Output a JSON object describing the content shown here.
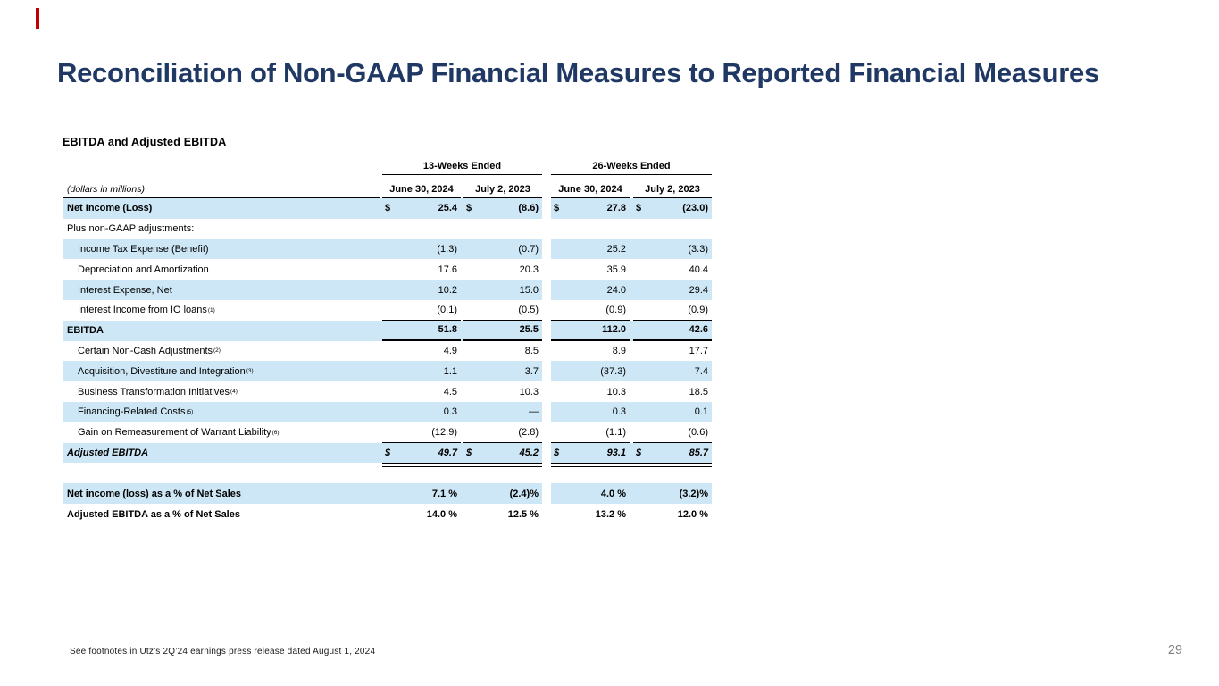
{
  "page": {
    "title": "Reconciliation of Non-GAAP Financial Measures to Reported Financial Measures",
    "footnote": "See footnotes in Utz’s 2Q’24 earnings press release dated August 1, 2024",
    "page_number": "29"
  },
  "colors": {
    "title_navy": "#1F3864",
    "stripe_blue": "#CDE7F6",
    "accent_red": "#C00000",
    "page_number_gray": "#7F7F7F"
  },
  "table": {
    "subtitle": "EBITDA and Adjusted EBITDA",
    "units_label": "(dollars in millions)",
    "column_groups": [
      "13-Weeks Ended",
      "26-Weeks Ended"
    ],
    "columns": [
      "June 30, 2024",
      "July 2, 2023",
      "June 30, 2024",
      "July 2, 2023"
    ],
    "rows": [
      {
        "label": "Net Income (Loss)",
        "style": "bold",
        "stripe": true,
        "dollar": true,
        "values": [
          "25.4",
          "(8.6)",
          "27.8",
          "(23.0)"
        ]
      },
      {
        "label": "Plus non-GAAP adjustments:",
        "values": [
          "",
          "",
          "",
          ""
        ]
      },
      {
        "label": "Income Tax Expense (Benefit)",
        "indent": true,
        "stripe": true,
        "values": [
          "(1.3)",
          "(0.7)",
          "25.2",
          "(3.3)"
        ]
      },
      {
        "label": "Depreciation and Amortization",
        "indent": true,
        "values": [
          "17.6",
          "20.3",
          "35.9",
          "40.4"
        ]
      },
      {
        "label": "Interest Expense, Net",
        "indent": true,
        "stripe": true,
        "values": [
          "10.2",
          "15.0",
          "24.0",
          "29.4"
        ]
      },
      {
        "label": "Interest Income from IO loans",
        "sup": "(1)",
        "indent": true,
        "underline": "thin",
        "values": [
          "(0.1)",
          "(0.5)",
          "(0.9)",
          "(0.9)"
        ]
      },
      {
        "label": "EBITDA",
        "style": "bold",
        "stripe": true,
        "underline": "thick",
        "values": [
          "51.8",
          "25.5",
          "112.0",
          "42.6"
        ]
      },
      {
        "label": "Certain Non-Cash Adjustments",
        "sup": "(2)",
        "indent": true,
        "values": [
          "4.9",
          "8.5",
          "8.9",
          "17.7"
        ]
      },
      {
        "label": "Acquisition, Divestiture and Integration",
        "sup": "(3)",
        "indent": true,
        "stripe": true,
        "values": [
          "1.1",
          "3.7",
          "(37.3)",
          "7.4"
        ]
      },
      {
        "label": "Business Transformation Initiatives",
        "sup": "(4)",
        "indent": true,
        "values": [
          "4.5",
          "10.3",
          "10.3",
          "18.5"
        ]
      },
      {
        "label": "Financing-Related Costs",
        "sup": "(5)",
        "indent": true,
        "stripe": true,
        "values": [
          "0.3",
          "—",
          "0.3",
          "0.1"
        ]
      },
      {
        "label": "Gain on Remeasurement of Warrant Liability",
        "sup": "(6)",
        "indent": true,
        "underline": "thin",
        "values": [
          "(12.9)",
          "(2.8)",
          "(1.1)",
          "(0.6)"
        ]
      },
      {
        "label": "Adjusted EBITDA",
        "style": "bold-italic",
        "stripe": true,
        "dollar": true,
        "double_underline": true,
        "values": [
          "49.7",
          "45.2",
          "93.1",
          "85.7"
        ]
      },
      {
        "label": "Net income (loss) as a % of Net Sales",
        "style": "bold",
        "stripe": true,
        "gap_above": true,
        "values": [
          "7.1 %",
          "(2.4)%",
          "4.0 %",
          "(3.2)%"
        ]
      },
      {
        "label": "Adjusted EBITDA as a % of Net Sales",
        "style": "bold",
        "values": [
          "14.0 %",
          "12.5 %",
          "13.2 %",
          "12.0 %"
        ]
      }
    ]
  }
}
